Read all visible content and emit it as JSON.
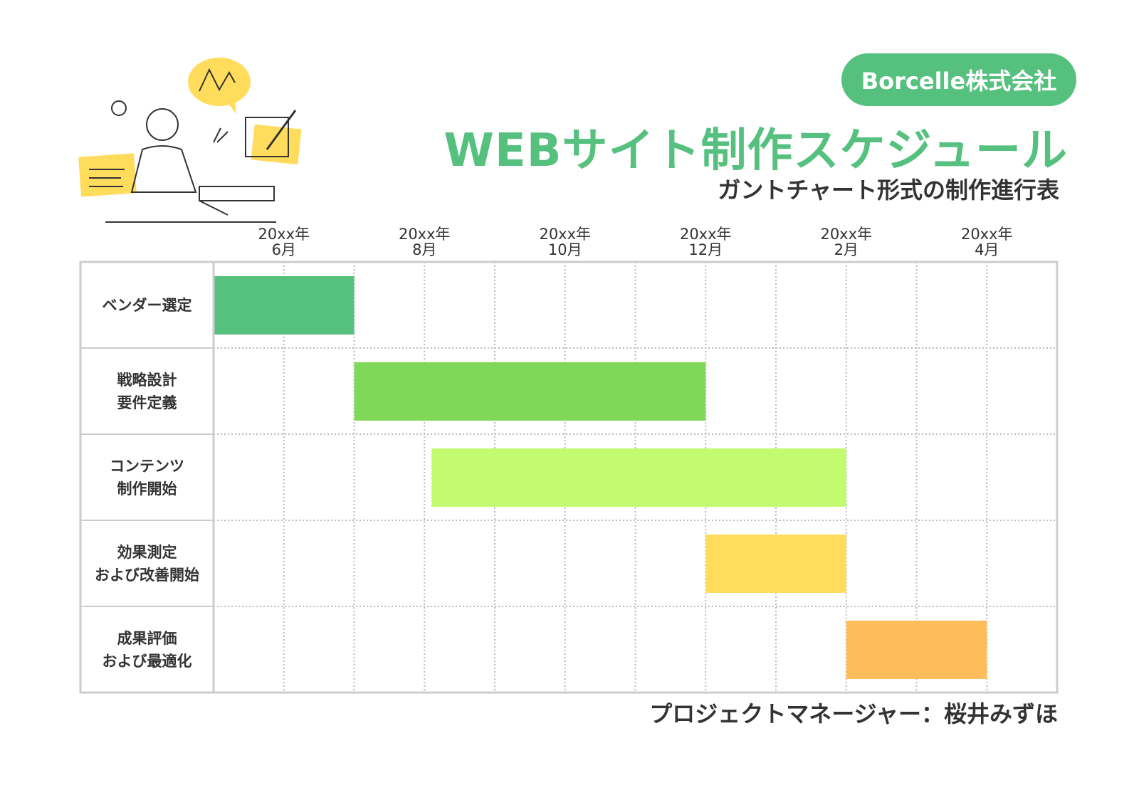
{
  "chart_data": {
    "type": "gantt",
    "badge": "Borcelle株式会社",
    "title": "WEBサイト制作スケジュール",
    "subtitle": "ガントチャート形式の制作進行表",
    "footer": "プロジェクトマネージャー：桜井みずほ",
    "xlim": [
      0,
      12
    ],
    "xticks": [
      {
        "value": 1,
        "label": "20xx年\n6月"
      },
      {
        "value": 3,
        "label": "20xx年\n8月"
      },
      {
        "value": 5,
        "label": "20xx年\n10月"
      },
      {
        "value": 7,
        "label": "20xx年\n12月"
      },
      {
        "value": 9,
        "label": "20xx年\n2月"
      },
      {
        "value": 11,
        "label": "20xx年\n4月"
      }
    ],
    "xminor": [
      2,
      4,
      6,
      8,
      10
    ],
    "tasks": [
      {
        "name": "ベンダー選定",
        "start": 0,
        "end": 2,
        "color": "#56c17f"
      },
      {
        "name": "戦略設計\n要件定義",
        "start": 2,
        "end": 7,
        "color": "#80d858"
      },
      {
        "name": "コンテンツ\n制作開始",
        "start": 3.1,
        "end": 9,
        "color": "#c2fb6f"
      },
      {
        "name": "効果測定\nおよび改善開始",
        "start": 7,
        "end": 9,
        "color": "#ffdc5c"
      },
      {
        "name": "成果評価\nおよび最適化",
        "start": 9,
        "end": 11,
        "color": "#ffbc5a"
      }
    ]
  }
}
